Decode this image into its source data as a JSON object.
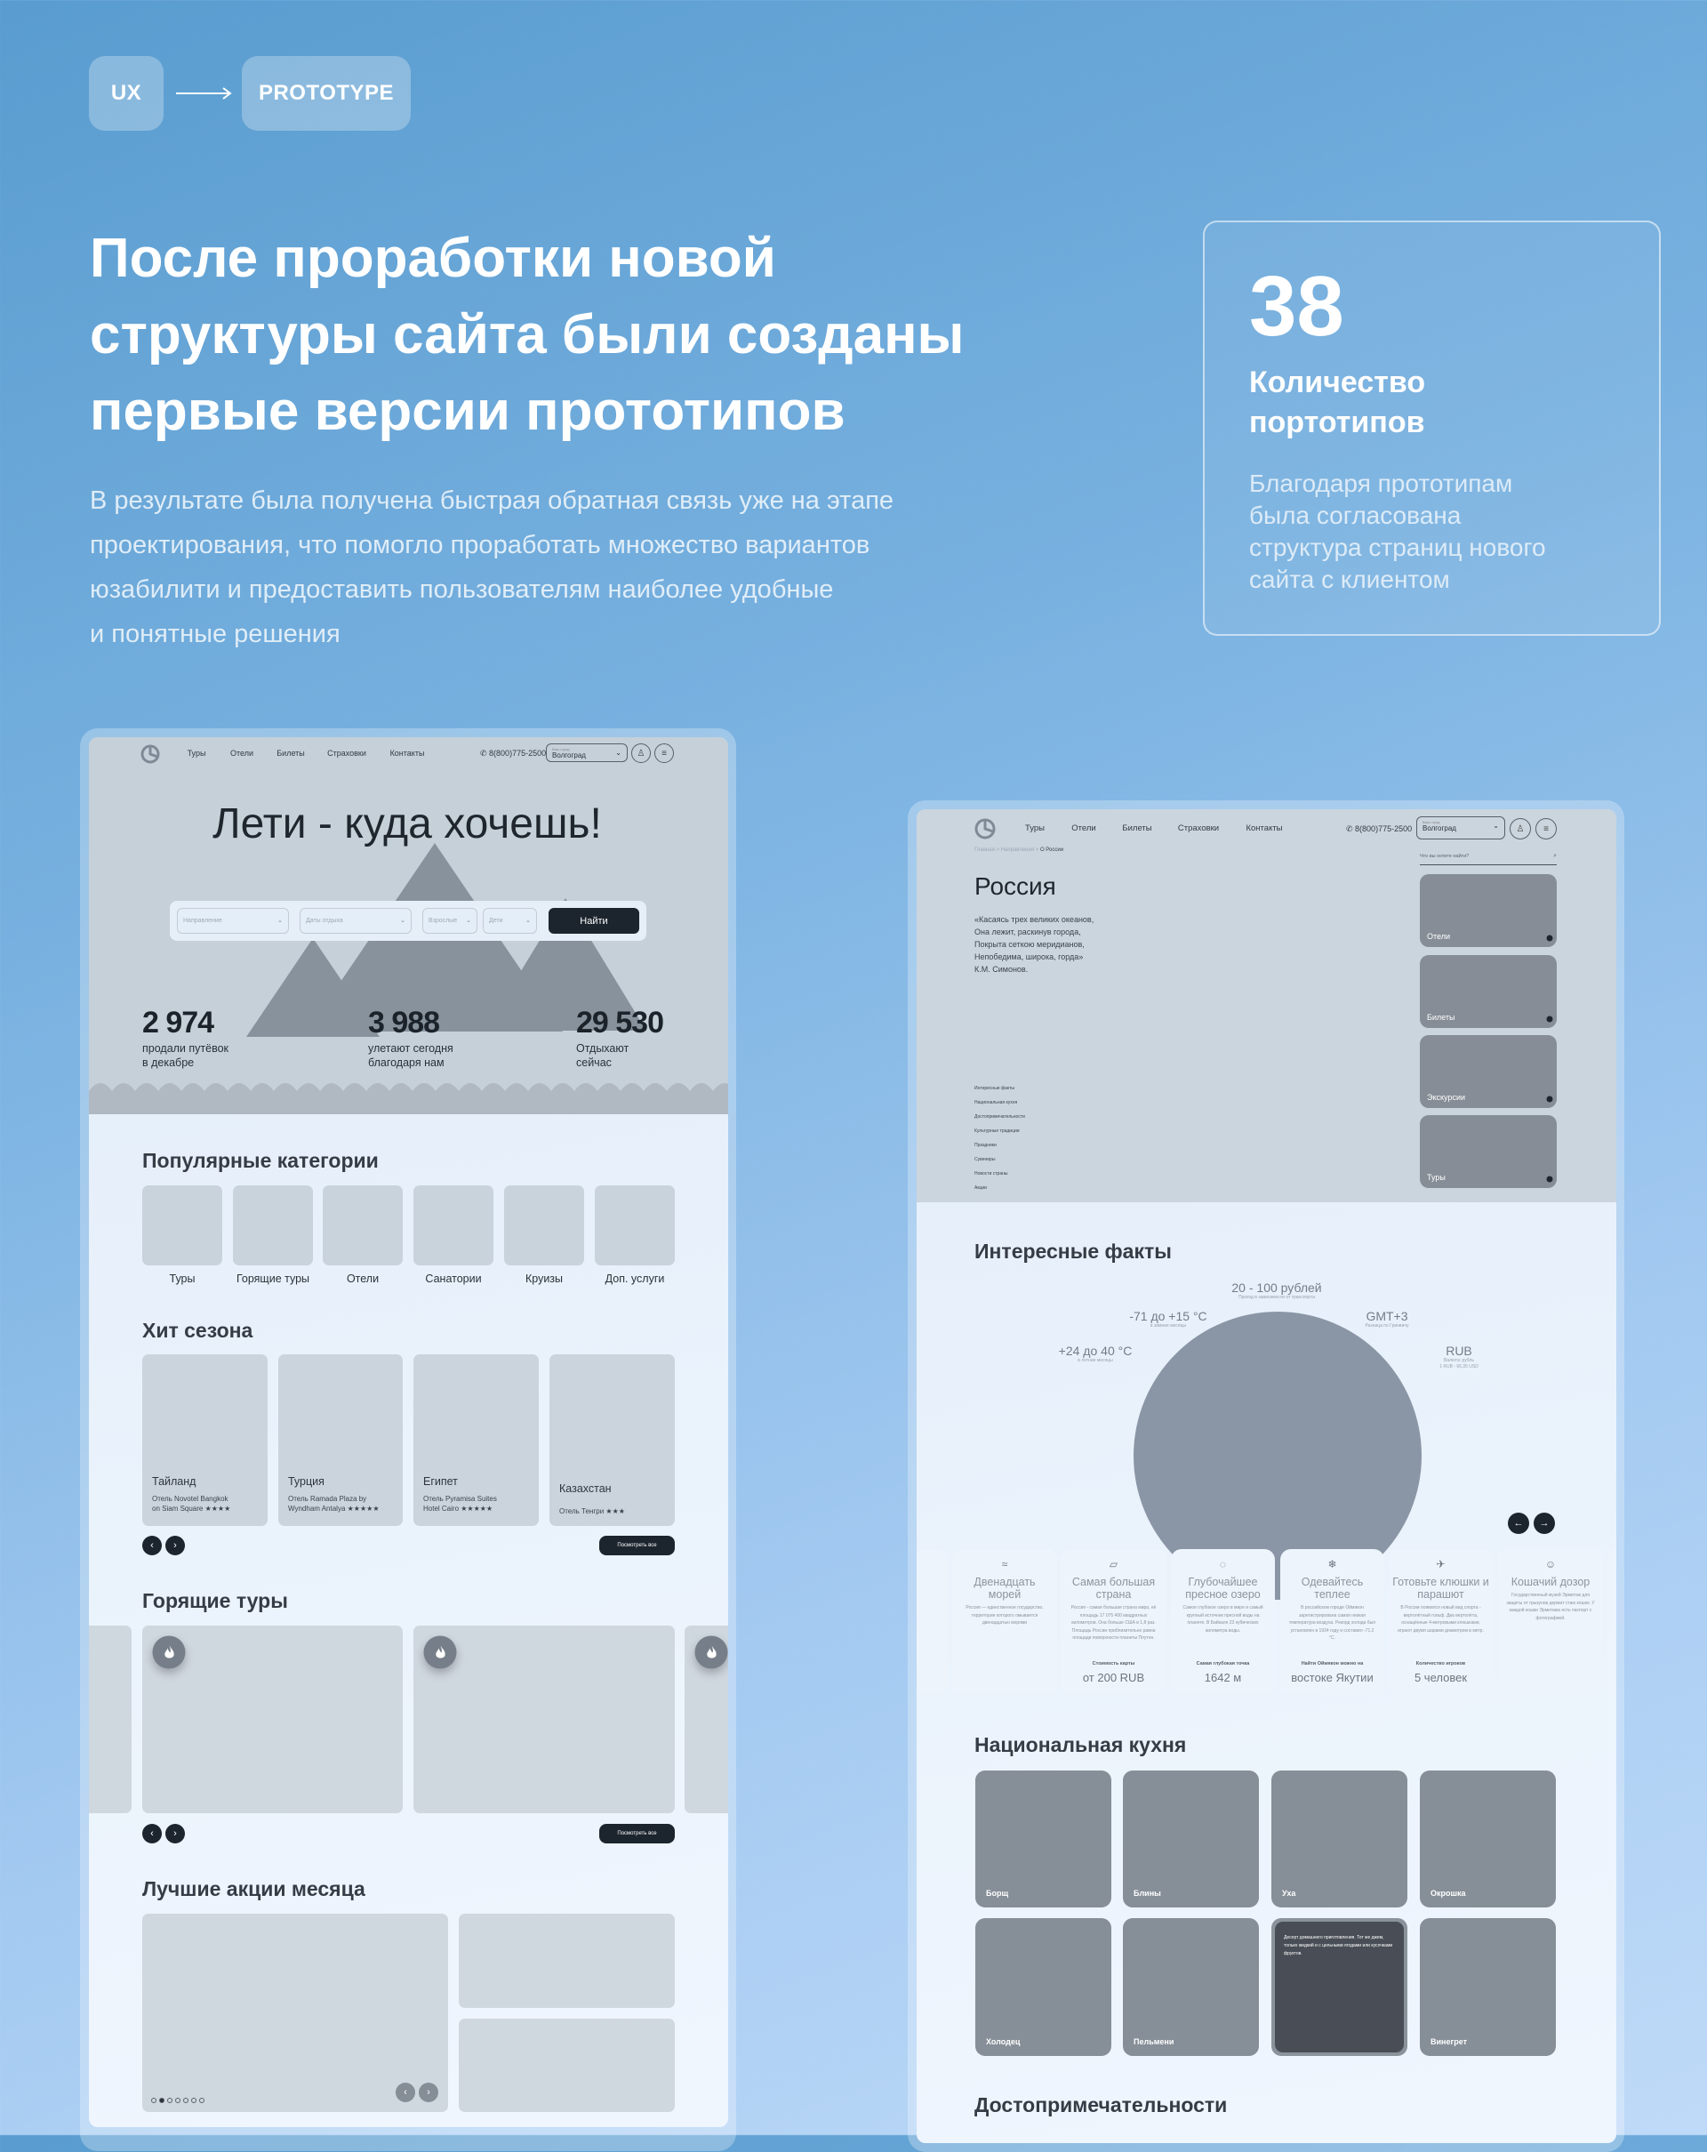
{
  "header": {
    "tag_from": "UX",
    "tag_to": "PROTOTYPE",
    "title": [
      "После проработки новой",
      "структуры сайта были созданы",
      "первые версии прототипов"
    ],
    "description": [
      "В результате была получена быстрая обратная связь уже на этапе",
      "проектирования, что помогло проработать множество вариантов",
      "юзабилити и предоставить пользователям наиболее удобные",
      "и понятные решения"
    ]
  },
  "stat": {
    "number": "38",
    "label": [
      "Количество",
      "портотипов"
    ],
    "description": [
      "Благодаря прототипам",
      "была согласована",
      "структура страниц нового",
      "сайта с клиентом"
    ]
  },
  "home": {
    "nav": [
      "Туры",
      "Отели",
      "Билеты",
      "Страховки",
      "Контакты"
    ],
    "phone": "8(800)775-2500",
    "city_label": "Ваш город",
    "city": "Волгоград",
    "hero_title": "Лети - куда хочешь!",
    "search": {
      "fields": [
        "Направление",
        "Даты отдыха",
        "Взрослые",
        "Дети"
      ],
      "submit": "Найти"
    },
    "stats": [
      {
        "value": "2 974",
        "label": [
          "продали путёвок",
          "в декабре"
        ]
      },
      {
        "value": "3 988",
        "label": [
          "улетают сегодня",
          "благодаря нам"
        ]
      },
      {
        "value": "29 530",
        "label": [
          "Отдыхают",
          "сейчас"
        ]
      }
    ],
    "categories_title": "Популярные категории",
    "categories": [
      "Туры",
      "Горящие туры",
      "Отели",
      "Санатории",
      "Круизы",
      "Доп. услуги"
    ],
    "hits_title": "Хит сезона",
    "hits": [
      {
        "country": "Тайланд",
        "hotel": [
          "Отель Novotel Bangkok",
          "on Siam Square ★★★★"
        ]
      },
      {
        "country": "Турция",
        "hotel": [
          "Отель Ramada Plaza by",
          "Wyndham Antalya ★★★★★"
        ]
      },
      {
        "country": "Египет",
        "hotel": [
          "Отель Pyramisa Suites",
          "Hotel Cairo ★★★★★"
        ]
      },
      {
        "country": "Казахстан",
        "hotel": [
          "Отель Тенгри ★★★"
        ]
      }
    ],
    "view_all": "Посмотреть все",
    "hot_title": "Горящие туры",
    "promo_title": "Лучшие акции месяца",
    "promo_dots": {
      "count": 7,
      "active": 2
    }
  },
  "country": {
    "nav": [
      "Туры",
      "Отели",
      "Билеты",
      "Страховки",
      "Контакты"
    ],
    "phone": "8(800)775-2500",
    "city_label": "Ваш город",
    "city": "Волгоград",
    "breadcrumb": [
      "Главная",
      "Направления",
      "О России"
    ],
    "search_placeholder": "Что вы хотите найти?",
    "title": "Россия",
    "quote": [
      "«Касаясь трех великих океанов,",
      "Она лежит, раскинув города,",
      "Покрыта сеткою меридианов,",
      "Непобедима, широка, горда»",
      "К.М. Симонов."
    ],
    "anchors": [
      "Интересные факты",
      "Национальная кухня",
      "Достопримечательности",
      "Культурные традиции",
      "Праздники",
      "Сувениры",
      "Новости страны",
      "Акции"
    ],
    "side_cards": [
      "Отели",
      "Билеты",
      "Экскурсии",
      "Туры"
    ],
    "facts_title": "Интересные факты",
    "facts_ring": [
      {
        "value": "20 - 100 рублей",
        "sub": [
          "Проезд в зависимости от транспорта"
        ]
      },
      {
        "value": "-71 до +15 °C",
        "sub": [
          "в зимние месяцы"
        ]
      },
      {
        "value": "GMT+3",
        "sub": [
          "Разница по Гринвичу"
        ]
      },
      {
        "value": "+24 до 40 °C",
        "sub": [
          "в летние месяцы"
        ]
      },
      {
        "value": "RUB",
        "sub": [
          "Валюта: рубль",
          "1 RUB - 66,35 USD"
        ]
      }
    ],
    "facts": [
      {
        "icon": "waves-icon",
        "glyph": "≈",
        "title": [
          "Двенадцать",
          "морей"
        ],
        "text": "Россия — единственное государство, территория которого омывается двенадцатью морями"
      },
      {
        "icon": "map-icon",
        "glyph": "▱",
        "title": [
          "Самая большая",
          "страна"
        ],
        "text": "Россия - самая большая страна мира, её площадь 17 075 400 квадратных километров. Она больше США в 1,8 раз. Площадь России приблизительно равна площади поверхности планеты Плутон.",
        "label": "Стоимость карты",
        "value": "от 200 RUB"
      },
      {
        "icon": "lake-icon",
        "glyph": "◌",
        "title": [
          "Глубочайшее",
          "пресное озеро"
        ],
        "text": "Самое глубокое озеро в мире и самый крупный источник пресной воды на планете. В Байкале 23 кубических километра воды.",
        "label": "Самая глубокая точка",
        "value": "1642 м"
      },
      {
        "icon": "snowflake-icon",
        "glyph": "❄",
        "title": [
          "Одевайтесь",
          "теплее"
        ],
        "text": "В российском городе Оймякон зарегистрирована самая низкая температура воздуха. Рекорд холода был установлен в 1924 году и составил -71,2 °C.",
        "label": "Найти Оймякон можно на",
        "value": "востоке Якутии"
      },
      {
        "icon": "helicopter-icon",
        "glyph": "✈",
        "title": [
          "Готовьте клюшки и",
          "парашют"
        ],
        "text": "В России появился новый вид спорта - вертолётный гольф. Два вертолёта, оснащённые 4-метровыми клюшками, играют двумя шарами диаметром в метр.",
        "label": "Количество игроков",
        "value": "5 человек"
      },
      {
        "icon": "cat-icon",
        "glyph": "☺",
        "title": [
          "Кошачий дозор"
        ],
        "text": "Государственный музей Эрмитаж для защиты от грызунов держит стаю кошек. У каждой кошки Эрмитажа есть паспорт с фотографией."
      }
    ],
    "cuisine_title": "Национальная кухня",
    "cuisine": [
      "Борщ",
      "Блины",
      "Уха",
      "Окрошка",
      "Холодец",
      "Пельмени",
      "",
      "Винегрет"
    ],
    "cuisine_hover_text": "Десерт домашнего приготовления. Тот же джем, только жидкий и с цельными ягодами или кусочками фруктов.",
    "sights_title": "Достопримечательности"
  },
  "colors": {
    "dark": "#1c252e",
    "placeholder": "#c9d3dc",
    "mountain": "#87929c",
    "globe": "#8a96a5",
    "food": "#868e97"
  }
}
